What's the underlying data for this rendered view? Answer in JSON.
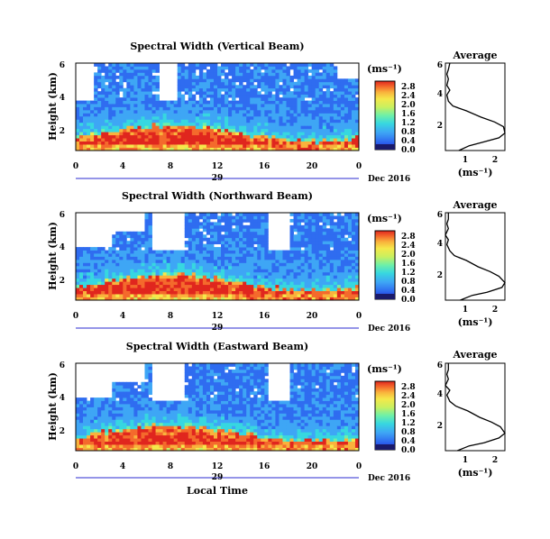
{
  "colorscale": [
    "#1c2bd6",
    "#2f6cf0",
    "#3ea6f5",
    "#37d7e0",
    "#6ef0a8",
    "#c8f060",
    "#f5e84a",
    "#f9b23c",
    "#f46a2c",
    "#e0261e"
  ],
  "chart_data": [
    {
      "type": "heatmap",
      "title": "Spectral Width (Vertical Beam)",
      "ylabel": "Height (km)",
      "x_ticks": [
        "0",
        "4",
        "8",
        "12",
        "16",
        "20",
        "0"
      ],
      "y_ticks": [
        "2",
        "4",
        "6"
      ],
      "date_label": "29",
      "month_label": "Dec 2016",
      "colorbar_unit": "(ms⁻¹)",
      "colorbar_ticks": [
        "0.0",
        "0.4",
        "0.8",
        "1.2",
        "1.6",
        "2.0",
        "2.4",
        "2.8"
      ],
      "xlim": [
        0,
        24
      ],
      "ylim": [
        0.5,
        6
      ],
      "clim": [
        0,
        2.8
      ],
      "average": {
        "title": "Average",
        "xlabel": "(ms⁻¹)",
        "x_ticks": [
          "1",
          "2"
        ],
        "y_ticks": [
          "2",
          "4",
          "6"
        ],
        "xlim": [
          0.5,
          2.5
        ],
        "height_km": [
          0.5,
          0.8,
          1.0,
          1.3,
          1.6,
          2.0,
          2.3,
          2.6,
          3.0,
          3.3,
          3.6,
          4.0,
          4.3,
          4.6,
          5.0,
          5.3,
          5.6,
          6.0
        ],
        "width_ms": [
          0.95,
          1.3,
          1.7,
          2.3,
          2.5,
          2.45,
          2.15,
          1.7,
          1.2,
          0.75,
          0.6,
          0.55,
          0.65,
          0.55,
          0.6,
          0.55,
          0.6,
          0.65
        ]
      }
    },
    {
      "type": "heatmap",
      "title": "Spectral Width (Northward Beam)",
      "ylabel": "Height (km)",
      "x_ticks": [
        "0",
        "4",
        "8",
        "12",
        "16",
        "20",
        "0"
      ],
      "y_ticks": [
        "2",
        "4",
        "6"
      ],
      "date_label": "29",
      "month_label": "Dec 2016",
      "colorbar_unit": "(ms⁻¹)",
      "colorbar_ticks": [
        "0.0",
        "0.4",
        "0.8",
        "1.2",
        "1.6",
        "2.0",
        "2.4",
        "2.8"
      ],
      "xlim": [
        0,
        24
      ],
      "ylim": [
        0.5,
        6
      ],
      "clim": [
        0,
        2.8
      ],
      "average": {
        "title": "Average",
        "xlabel": "(ms⁻¹)",
        "x_ticks": [
          "1",
          "2"
        ],
        "y_ticks": [
          "2",
          "4",
          "6"
        ],
        "xlim": [
          0.5,
          2.5
        ],
        "height_km": [
          0.5,
          0.8,
          1.0,
          1.3,
          1.6,
          2.0,
          2.3,
          2.6,
          3.0,
          3.3,
          3.6,
          4.0,
          4.3,
          4.6,
          5.0,
          5.3,
          5.6,
          6.0
        ],
        "width_ms": [
          1.0,
          1.4,
          1.9,
          2.4,
          2.5,
          2.3,
          2.0,
          1.6,
          1.2,
          0.8,
          0.65,
          0.55,
          0.6,
          0.5,
          0.6,
          0.55,
          0.6,
          0.6
        ]
      }
    },
    {
      "type": "heatmap",
      "title": "Spectral Width (Eastward Beam)",
      "ylabel": "Height (km)",
      "x_ticks": [
        "0",
        "4",
        "8",
        "12",
        "16",
        "20",
        "0"
      ],
      "y_ticks": [
        "2",
        "4",
        "6"
      ],
      "date_label": "29",
      "month_label": "Dec 2016",
      "xlabel": "Local Time",
      "colorbar_unit": "(ms⁻¹)",
      "colorbar_ticks": [
        "0.0",
        "0.4",
        "0.8",
        "1.2",
        "1.6",
        "2.0",
        "2.4",
        "2.8"
      ],
      "xlim": [
        0,
        24
      ],
      "ylim": [
        0.5,
        6
      ],
      "clim": [
        0,
        2.8
      ],
      "average": {
        "title": "Average",
        "xlabel": "(ms⁻¹)",
        "x_ticks": [
          "1",
          "2"
        ],
        "y_ticks": [
          "2",
          "4",
          "6"
        ],
        "xlim": [
          0.5,
          2.5
        ],
        "height_km": [
          0.5,
          0.8,
          1.0,
          1.3,
          1.6,
          2.0,
          2.3,
          2.6,
          3.0,
          3.3,
          3.6,
          4.0,
          4.3,
          4.6,
          5.0,
          5.3,
          5.6,
          6.0
        ],
        "width_ms": [
          0.9,
          1.3,
          1.8,
          2.3,
          2.5,
          2.35,
          2.05,
          1.65,
          1.25,
          0.85,
          0.65,
          0.55,
          0.65,
          0.5,
          0.6,
          0.55,
          0.6,
          0.6
        ]
      }
    }
  ]
}
